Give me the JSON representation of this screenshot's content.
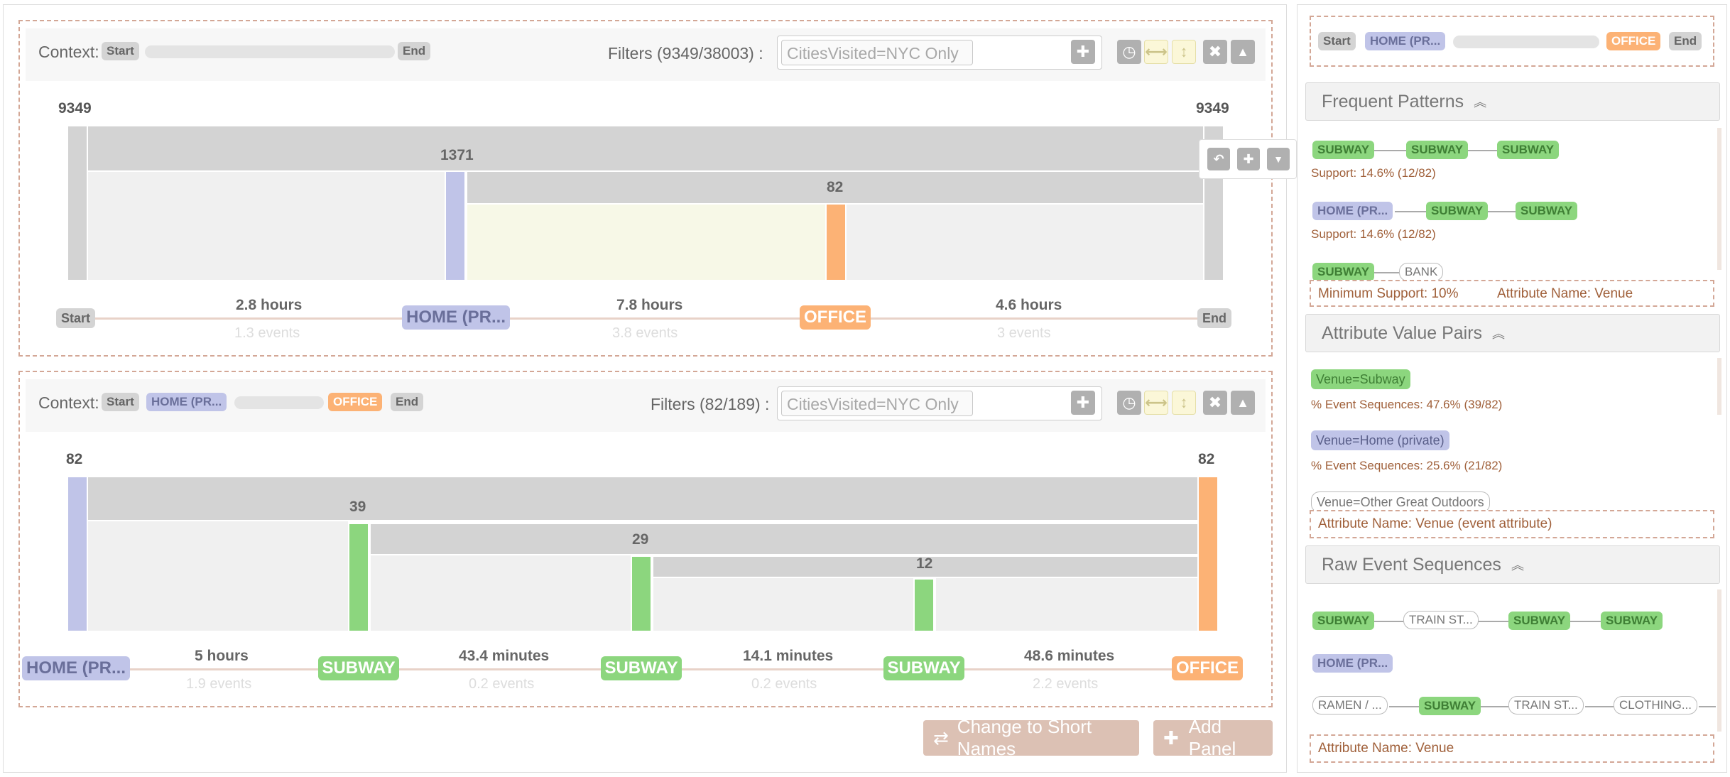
{
  "panel1": {
    "context_label": "Context:",
    "ctx_start": "Start",
    "ctx_end": "End",
    "filters_label": "Filters (9349/38003) :",
    "filter_value": "CitiesVisited=NYC Only",
    "count_left": "9349",
    "count_right": "9349",
    "bar_labels": [
      "1371",
      "82"
    ],
    "nodes": [
      "Start",
      "HOME (PR...",
      "OFFICE",
      "End"
    ],
    "durations": [
      "2.8 hours",
      "7.8 hours",
      "4.6 hours"
    ],
    "event_counts": [
      "1.3 events",
      "3.8 events",
      "3 events"
    ]
  },
  "panel2": {
    "context_label": "Context:",
    "ctx_start": "Start",
    "ctx_home": "HOME (PR...",
    "ctx_office": "OFFICE",
    "ctx_end": "End",
    "filters_label": "Filters (82/189) :",
    "filter_value": "CitiesVisited=NYC Only",
    "count_left": "82",
    "count_right": "82",
    "bar_labels": [
      "39",
      "29",
      "12"
    ],
    "nodes": [
      "HOME (PR...",
      "SUBWAY",
      "SUBWAY",
      "SUBWAY",
      "OFFICE"
    ],
    "durations": [
      "5 hours",
      "43.4 minutes",
      "14.1 minutes",
      "48.6 minutes"
    ],
    "event_counts": [
      "1.9 events",
      "0.2 events",
      "0.2 events",
      "2.2 events"
    ]
  },
  "bottom_buttons": {
    "short_names": "Change to Short Names",
    "add_panel": "Add Panel"
  },
  "sidebar": {
    "context": {
      "start": "Start",
      "home": "HOME (PR...",
      "office": "OFFICE",
      "end": "End"
    },
    "frequent_patterns": {
      "title": "Frequent Patterns",
      "p1": [
        "SUBWAY",
        "SUBWAY",
        "SUBWAY"
      ],
      "p1_support": "Support: 14.6% (12/82)",
      "p2": [
        "HOME (PR...",
        "SUBWAY",
        "SUBWAY"
      ],
      "p2_support": "Support: 14.6% (12/82)",
      "p3": [
        "SUBWAY",
        "BANK"
      ],
      "min_support": "Minimum Support: 10%",
      "attr_name": "Attribute Name: Venue"
    },
    "attribute_value_pairs": {
      "title": "Attribute Value Pairs",
      "a1": "Venue=Subway",
      "a1_pct": "% Event Sequences: 47.6% (39/82)",
      "a2": "Venue=Home (private)",
      "a2_pct": "% Event Sequences: 25.6% (21/82)",
      "a3": "Venue=Other Great Outdoors",
      "attr_name": "Attribute Name: Venue (event attribute)"
    },
    "raw_event_sequences": {
      "title": "Raw Event Sequences",
      "r1": [
        "SUBWAY",
        "TRAIN ST...",
        "SUBWAY",
        "SUBWAY"
      ],
      "r2": [
        "HOME (PR..."
      ],
      "r3": [
        "RAMEN / ...",
        "SUBWAY",
        "TRAIN ST...",
        "CLOTHING..."
      ],
      "attr_name": "Attribute Name: Venue"
    }
  },
  "icons": {
    "clock": "clock-icon",
    "horizontal": "arrows-horizontal-icon",
    "vertical": "arrows-vertical-icon",
    "close": "close-icon",
    "collapse": "caret-up-icon",
    "plus": "plus-icon",
    "undo": "undo-icon",
    "caret_down": "caret-down-icon",
    "swap": "swap-icon",
    "chevrons_up": "chevrons-up-icon"
  },
  "colors": {
    "grey": "#d3d3d3",
    "home": "#c0c4e8",
    "office": "#fcb275",
    "subway": "#8cd67e",
    "dashed": "#d3a796"
  }
}
